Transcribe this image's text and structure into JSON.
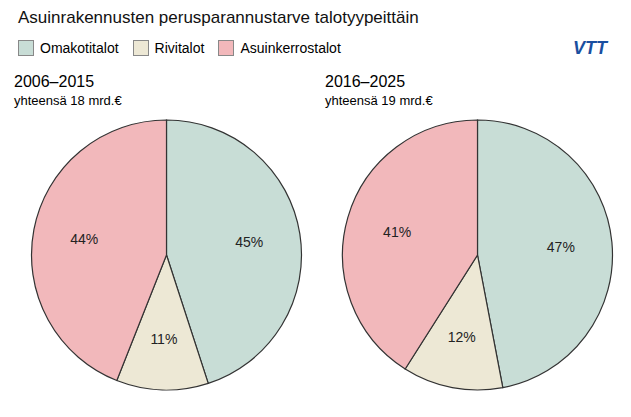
{
  "title": "Asuinrakennusten perusparannustarve talotyypeittäin",
  "legend": "upper left",
  "annotations": [
    "VTT"
  ],
  "chart_data": [
    {
      "type": "pie",
      "title": "2006–2015",
      "subtitle": "yhteensä 18 mrd.€",
      "categories": [
        "Omakotitalot",
        "Rivitalot",
        "Asuinkerrostalot"
      ],
      "values": [
        45,
        11,
        44
      ],
      "value_labels": [
        "45%",
        "11%",
        "44%"
      ],
      "colors": [
        "#c8ddd6",
        "#ede8d5",
        "#f2b8bb"
      ],
      "data_labels": true
    },
    {
      "type": "pie",
      "title": "2016–2025",
      "subtitle": "yhteensä 19 mrd.€",
      "categories": [
        "Omakotitalot",
        "Rivitalot",
        "Asuinkerrostalot"
      ],
      "values": [
        47,
        12,
        41
      ],
      "value_labels": [
        "47%",
        "12%",
        "41%"
      ],
      "colors": [
        "#c8ddd6",
        "#ede8d5",
        "#f2b8bb"
      ],
      "data_labels": true
    }
  ]
}
